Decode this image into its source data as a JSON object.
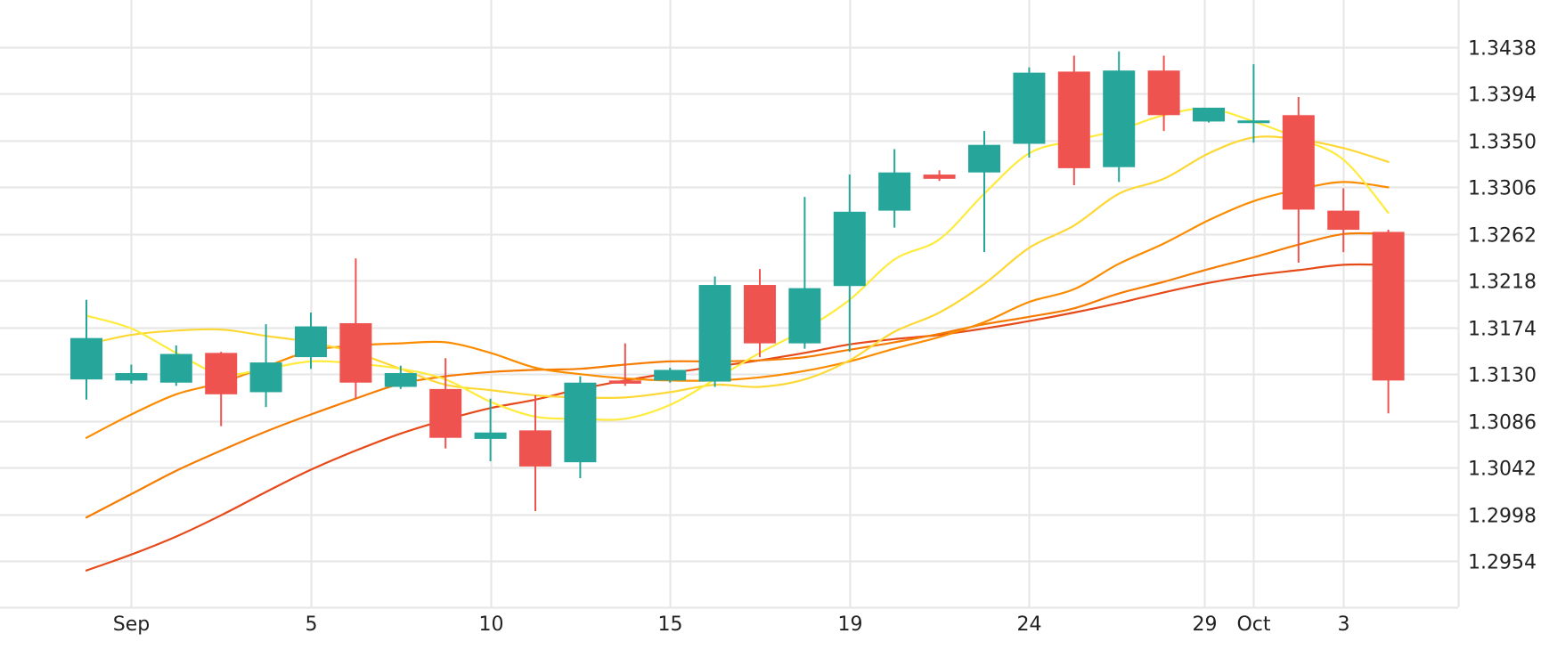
{
  "colors": {
    "up": "#26a69a",
    "down": "#ef5350",
    "grid": "#e6e6e6",
    "text": "#222222",
    "background": "#ffffff"
  },
  "chart_data": {
    "type": "candlestick",
    "title": "",
    "xlabel": "",
    "ylabel": "",
    "ylim": [
      1.291,
      1.3482
    ],
    "grid": true,
    "y_ticks": [
      "1.2954",
      "1.2998",
      "1.3042",
      "1.3086",
      "1.3130",
      "1.3174",
      "1.3218",
      "1.3262",
      "1.3306",
      "1.3350",
      "1.3394",
      "1.3438"
    ],
    "x_ticks": [
      {
        "label": "Sep",
        "x": 1
      },
      {
        "label": "5",
        "x": 5
      },
      {
        "label": "10",
        "x": 9
      },
      {
        "label": "15",
        "x": 13
      },
      {
        "label": "19",
        "x": 17
      },
      {
        "label": "24",
        "x": 21
      },
      {
        "label": "29",
        "x": 24.9
      },
      {
        "label": "Oct",
        "x": 26
      },
      {
        "label": "3",
        "x": 28
      }
    ],
    "candles": [
      {
        "x": 0,
        "open": 1.3125,
        "high": 1.32,
        "low": 1.3106,
        "close": 1.3164
      },
      {
        "x": 1,
        "open": 1.3124,
        "high": 1.3139,
        "low": 1.3121,
        "close": 1.3131
      },
      {
        "x": 2,
        "open": 1.3122,
        "high": 1.3157,
        "low": 1.3119,
        "close": 1.3149
      },
      {
        "x": 3,
        "open": 1.315,
        "high": 1.3151,
        "low": 1.3081,
        "close": 1.3111
      },
      {
        "x": 4,
        "open": 1.3113,
        "high": 1.3177,
        "low": 1.3099,
        "close": 1.3141
      },
      {
        "x": 5,
        "open": 1.3146,
        "high": 1.3188,
        "low": 1.3135,
        "close": 1.3175
      },
      {
        "x": 6,
        "open": 1.3178,
        "high": 1.3239,
        "low": 1.3107,
        "close": 1.3122
      },
      {
        "x": 7,
        "open": 1.3118,
        "high": 1.3138,
        "low": 1.3116,
        "close": 1.3131
      },
      {
        "x": 8,
        "open": 1.3116,
        "high": 1.3145,
        "low": 1.306,
        "close": 1.307
      },
      {
        "x": 9,
        "open": 1.3069,
        "high": 1.3107,
        "low": 1.3048,
        "close": 1.3075
      },
      {
        "x": 10,
        "open": 1.3077,
        "high": 1.311,
        "low": 1.3001,
        "close": 1.3043
      },
      {
        "x": 11,
        "open": 1.3047,
        "high": 1.3128,
        "low": 1.3032,
        "close": 1.3122
      },
      {
        "x": 12,
        "open": 1.3124,
        "high": 1.3159,
        "low": 1.3119,
        "close": 1.3121
      },
      {
        "x": 13,
        "open": 1.3124,
        "high": 1.3136,
        "low": 1.3122,
        "close": 1.3134
      },
      {
        "x": 14,
        "open": 1.3123,
        "high": 1.3222,
        "low": 1.3118,
        "close": 1.3214
      },
      {
        "x": 15,
        "open": 1.3214,
        "high": 1.3229,
        "low": 1.3146,
        "close": 1.3159
      },
      {
        "x": 16,
        "open": 1.3159,
        "high": 1.3297,
        "low": 1.3154,
        "close": 1.3211
      },
      {
        "x": 17,
        "open": 1.3213,
        "high": 1.3318,
        "low": 1.3151,
        "close": 1.3283
      },
      {
        "x": 18,
        "open": 1.3284,
        "high": 1.3342,
        "low": 1.3268,
        "close": 1.332
      },
      {
        "x": 19,
        "open": 1.3318,
        "high": 1.3322,
        "low": 1.3312,
        "close": 1.3314
      },
      {
        "x": 20,
        "open": 1.332,
        "high": 1.3359,
        "low": 1.3245,
        "close": 1.3346
      },
      {
        "x": 21,
        "open": 1.3347,
        "high": 1.3419,
        "low": 1.3334,
        "close": 1.3414
      },
      {
        "x": 22,
        "open": 1.3415,
        "high": 1.343,
        "low": 1.3308,
        "close": 1.3324
      },
      {
        "x": 23,
        "open": 1.3325,
        "high": 1.3434,
        "low": 1.3311,
        "close": 1.3416
      },
      {
        "x": 24,
        "open": 1.3416,
        "high": 1.343,
        "low": 1.3359,
        "close": 1.3374
      },
      {
        "x": 25,
        "open": 1.3368,
        "high": 1.3381,
        "low": 1.3367,
        "close": 1.3381
      },
      {
        "x": 26,
        "open": 1.3368,
        "high": 1.3422,
        "low": 1.3348,
        "close": 1.3369
      },
      {
        "x": 27,
        "open": 1.3374,
        "high": 1.3391,
        "low": 1.3235,
        "close": 1.3285
      },
      {
        "x": 28,
        "open": 1.3284,
        "high": 1.3305,
        "low": 1.3245,
        "close": 1.3266
      },
      {
        "x": 29,
        "open": 1.3264,
        "high": 1.3266,
        "low": 1.3093,
        "close": 1.3124
      }
    ],
    "series": [
      {
        "color": "#ffeb3b",
        "type": "line",
        "x": [
          0,
          1,
          2,
          3,
          4,
          5,
          6,
          7,
          8,
          9,
          10,
          11,
          12,
          13,
          14,
          15,
          16,
          17,
          18,
          19,
          20,
          21,
          22,
          23,
          24,
          25,
          26,
          27,
          28,
          29
        ],
        "values": [
          1.3185,
          1.3173,
          1.315,
          1.313,
          1.3135,
          1.3142,
          1.314,
          1.3135,
          1.3125,
          1.3104,
          1.309,
          1.3088,
          1.3088,
          1.3101,
          1.3125,
          1.315,
          1.3172,
          1.32,
          1.3238,
          1.3257,
          1.33,
          1.3338,
          1.335,
          1.336,
          1.3374,
          1.338,
          1.3368,
          1.3352,
          1.3332,
          1.3282
        ]
      },
      {
        "color": "#fdd835",
        "type": "line",
        "x": [
          0,
          1,
          2,
          3,
          4,
          5,
          6,
          7,
          8,
          9,
          10,
          11,
          12,
          13,
          14,
          15,
          16,
          17,
          18,
          19,
          20,
          21,
          22,
          23,
          24,
          25,
          26,
          27,
          28,
          29
        ],
        "values": [
          1.3158,
          1.3167,
          1.3171,
          1.3172,
          1.3166,
          1.316,
          1.315,
          1.3135,
          1.312,
          1.3115,
          1.311,
          1.3108,
          1.3108,
          1.3113,
          1.312,
          1.3118,
          1.3125,
          1.3143,
          1.317,
          1.3188,
          1.3215,
          1.3249,
          1.327,
          1.33,
          1.3314,
          1.3338,
          1.3353,
          1.3351,
          1.3343,
          1.333
        ]
      },
      {
        "color": "#fb8c00",
        "type": "line",
        "x": [
          0,
          1,
          2,
          3,
          4,
          5,
          6,
          7,
          8,
          9,
          10,
          11,
          12,
          13,
          14,
          15,
          16,
          17,
          18,
          19,
          20,
          21,
          22,
          23,
          24,
          25,
          26,
          27,
          28,
          29
        ],
        "values": [
          1.307,
          1.3092,
          1.3111,
          1.3122,
          1.3137,
          1.3152,
          1.3157,
          1.3159,
          1.316,
          1.315,
          1.3136,
          1.313,
          1.3126,
          1.3124,
          1.3124,
          1.3127,
          1.3133,
          1.3142,
          1.3154,
          1.3165,
          1.3179,
          1.3198,
          1.321,
          1.3234,
          1.3253,
          1.3275,
          1.3293,
          1.3304,
          1.3311,
          1.3306
        ]
      },
      {
        "color": "#f57c00",
        "type": "line",
        "x": [
          0,
          1,
          2,
          3,
          4,
          5,
          6,
          7,
          8,
          9,
          10,
          11,
          12,
          13,
          14,
          15,
          16,
          17,
          18,
          19,
          20,
          21,
          22,
          23,
          24,
          25,
          26,
          27,
          28,
          29
        ],
        "values": [
          1.2995,
          1.3017,
          1.3039,
          1.3058,
          1.3076,
          1.3092,
          1.3107,
          1.3121,
          1.3128,
          1.3132,
          1.3134,
          1.3135,
          1.3139,
          1.3142,
          1.3142,
          1.3143,
          1.3146,
          1.3153,
          1.316,
          1.3168,
          1.3177,
          1.3184,
          1.3192,
          1.3206,
          1.3217,
          1.3229,
          1.324,
          1.3252,
          1.3262,
          1.3262
        ]
      },
      {
        "color": "#e64a19",
        "type": "line",
        "x": [
          0,
          1,
          2,
          3,
          4,
          5,
          6,
          7,
          8,
          9,
          10,
          11,
          12,
          13,
          14,
          15,
          16,
          17,
          18,
          19,
          20,
          21,
          22,
          23,
          24,
          25,
          26,
          27,
          28,
          29
        ],
        "values": [
          1.2945,
          1.296,
          1.2977,
          1.2997,
          1.3019,
          1.304,
          1.3058,
          1.3074,
          1.3087,
          1.3098,
          1.3106,
          1.3116,
          1.3124,
          1.3131,
          1.3137,
          1.3143,
          1.315,
          1.3158,
          1.3163,
          1.3167,
          1.3173,
          1.318,
          1.3188,
          1.3197,
          1.3207,
          1.3216,
          1.3223,
          1.3228,
          1.3233,
          1.3233
        ]
      }
    ]
  }
}
